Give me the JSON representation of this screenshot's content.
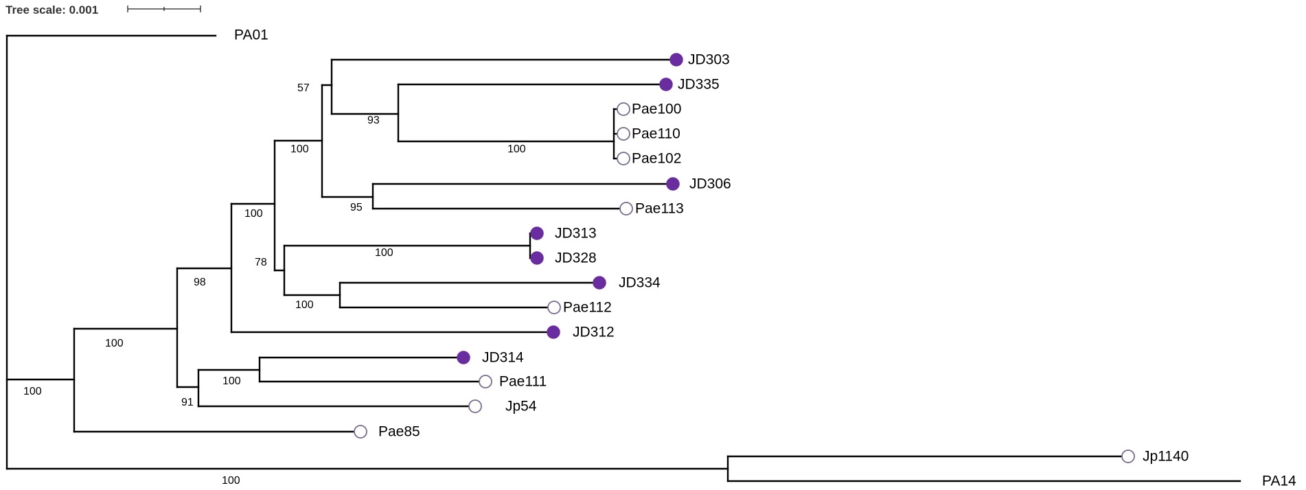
{
  "scale": {
    "label": "Tree scale: 0.001"
  },
  "legend_colors": {
    "filled": "#6a2d9f",
    "open": "#ffffff"
  },
  "tips": [
    {
      "name": "PA01",
      "marker": "none"
    },
    {
      "name": "JD303",
      "marker": "filled"
    },
    {
      "name": "JD335",
      "marker": "filled"
    },
    {
      "name": "Pae100",
      "marker": "open"
    },
    {
      "name": "Pae110",
      "marker": "open"
    },
    {
      "name": "Pae102",
      "marker": "open"
    },
    {
      "name": "JD306",
      "marker": "filled"
    },
    {
      "name": "Pae113",
      "marker": "open"
    },
    {
      "name": "JD313",
      "marker": "filled"
    },
    {
      "name": "JD328",
      "marker": "filled"
    },
    {
      "name": "JD334",
      "marker": "filled"
    },
    {
      "name": "Pae112",
      "marker": "open"
    },
    {
      "name": "JD312",
      "marker": "filled"
    },
    {
      "name": "JD314",
      "marker": "filled"
    },
    {
      "name": "Pae111",
      "marker": "open"
    },
    {
      "name": "Jp54",
      "marker": "open"
    },
    {
      "name": "Pae85",
      "marker": "open"
    },
    {
      "name": "Jp1140",
      "marker": "open"
    },
    {
      "name": "PA14",
      "marker": "none"
    }
  ],
  "support_values": [
    "57",
    "93",
    "100",
    "100",
    "95",
    "100",
    "78",
    "100",
    "100",
    "98",
    "100",
    "100",
    "91",
    "100",
    "100"
  ]
}
